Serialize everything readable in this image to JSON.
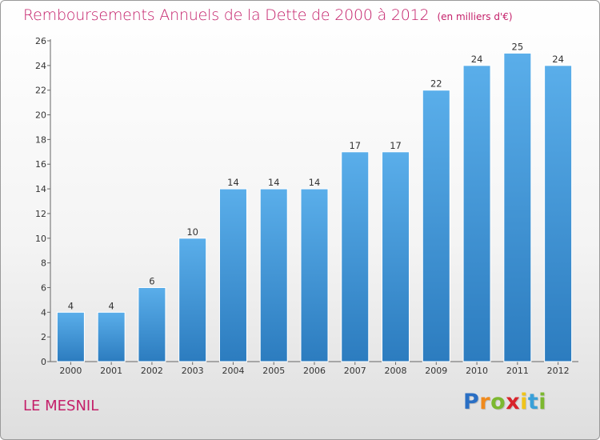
{
  "chart_data": {
    "type": "bar",
    "title": "Remboursements Annuels de la Dette de 2000 à 2012",
    "unit_note": "(en milliers d'€)",
    "categories": [
      "2000",
      "2001",
      "2002",
      "2003",
      "2004",
      "2005",
      "2006",
      "2007",
      "2008",
      "2009",
      "2010",
      "2011",
      "2012"
    ],
    "values": [
      4,
      4,
      6,
      10,
      14,
      14,
      14,
      17,
      17,
      22,
      24,
      25,
      24
    ],
    "ylim": [
      0,
      26
    ],
    "yticks": [
      0,
      2,
      4,
      6,
      8,
      10,
      12,
      14,
      16,
      18,
      20,
      22,
      24,
      26
    ],
    "xlabel": "",
    "ylabel": "",
    "grid": false,
    "bar_color_top": "#5aaeea",
    "bar_color_bottom": "#2c7cbf"
  },
  "commune": "LE MESNIL",
  "logo": {
    "letters": [
      "P",
      "r",
      "o",
      "x",
      "i",
      "t",
      "i"
    ],
    "colors": [
      "#2a6fc4",
      "#f08a1c",
      "#7cb82f",
      "#d8232a",
      "#f0c419",
      "#3aa0d8",
      "#7cb82f"
    ]
  },
  "colors": {
    "accent": "#c4206a"
  }
}
